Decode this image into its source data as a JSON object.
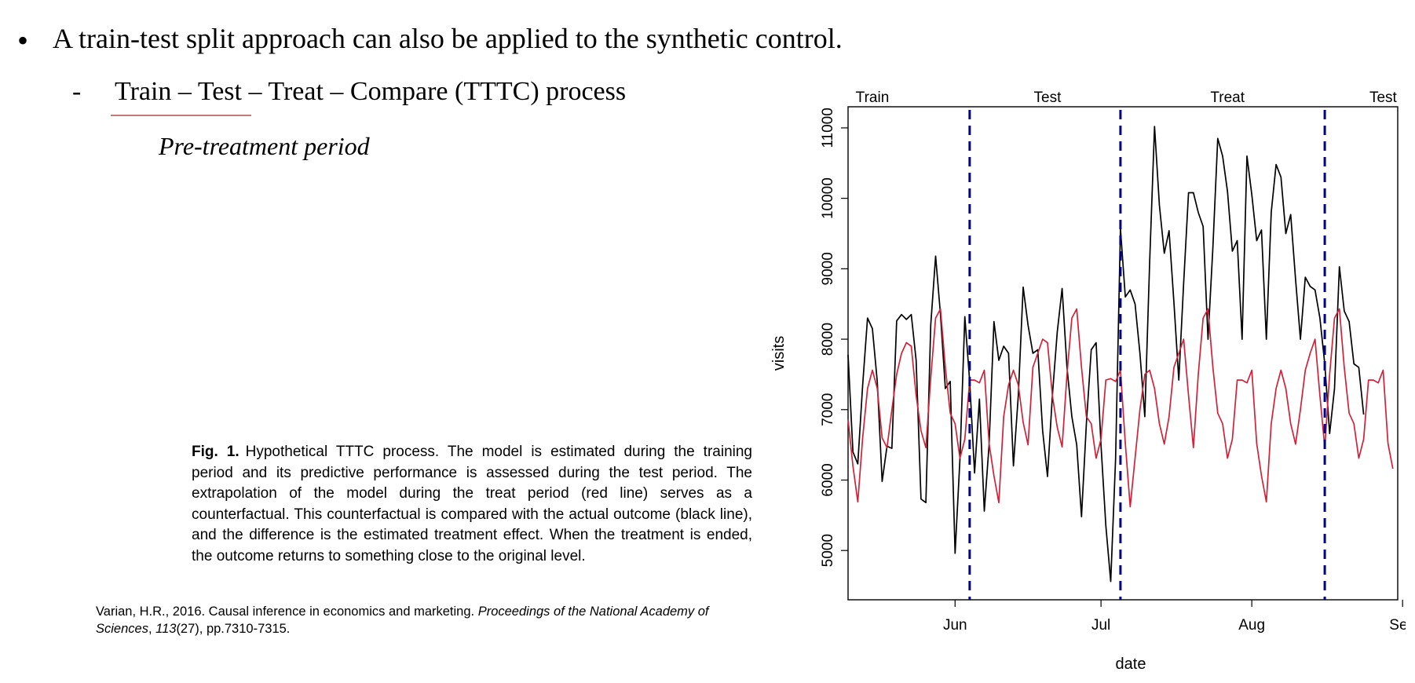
{
  "slide": {
    "bullet_marker": "•",
    "bullet_text": "A train-test split approach can also be applied to the synthetic control.",
    "sub_marker": "-",
    "sub_text": "Train – Test – Treat – Compare (TTTC) process",
    "pre_period_label": "Pre-treatment period"
  },
  "caption": {
    "label": "Fig. 1.",
    "text": "Hypothetical TTTC process. The model is estimated during the training period and its predictive performance is assessed during the test period. The extrapolation of the model during the treat period (red line) serves as a counterfactual. This counterfactual is compared with the actual outcome (black line), and the difference is the estimated treatment effect. When the treatment is ended, the outcome returns to something close to the original level."
  },
  "reference": {
    "authors": "Varian, H.R., 2016. Causal inference in economics and marketing. ",
    "journal": "Proceedings of the National Academy of Sciences",
    "sep": ", ",
    "volume": "113",
    "issue_pages": "(27), pp.7310-7315."
  },
  "chart_data": {
    "type": "line",
    "xlabel": "date",
    "ylabel": "visits",
    "xlim": [
      0,
      113
    ],
    "ylim": [
      4300,
      11300
    ],
    "y_ticks": [
      5000,
      6000,
      7000,
      8000,
      9000,
      10000,
      11000
    ],
    "x_ticks": [
      {
        "label": "Jun",
        "x": 22
      },
      {
        "label": "Jul",
        "x": 52
      },
      {
        "label": "Aug",
        "x": 83
      },
      {
        "label": "Sep",
        "x": 114
      }
    ],
    "phases": [
      {
        "label": "Train",
        "x": 5
      },
      {
        "label": "Test",
        "x": 41
      },
      {
        "label": "Treat",
        "x": 78
      },
      {
        "label": "Test",
        "x": 110
      }
    ],
    "dividers": [
      25,
      56,
      98
    ],
    "divider_color": "#00008b",
    "series": [
      {
        "color": "#000000",
        "values": [
          7780,
          6400,
          6230,
          7350,
          8300,
          8150,
          7400,
          5980,
          6480,
          6450,
          8260,
          8350,
          8280,
          8350,
          7700,
          5730,
          5680,
          8200,
          9180,
          8350,
          7300,
          7400,
          4960,
          6300,
          8320,
          7400,
          6100,
          7150,
          5560,
          6500,
          8250,
          7700,
          7900,
          7800,
          6200,
          7200,
          8740,
          8200,
          7800,
          7850,
          6700,
          6050,
          7200,
          8100,
          8720,
          7600,
          6900,
          6500,
          5480,
          6800,
          7850,
          7950,
          6500,
          5350,
          4560,
          6300,
          9570,
          8600,
          8700,
          8500,
          7800,
          6900,
          9100,
          11020,
          9900,
          9220,
          9540,
          8520,
          7420,
          8800,
          10080,
          10080,
          9800,
          9600,
          8000,
          9300,
          10850,
          10600,
          10100,
          9250,
          9400,
          8000,
          10600,
          10050,
          9400,
          9550,
          8000,
          9800,
          10480,
          10300,
          9500,
          9770,
          8850,
          8000,
          8880,
          8750,
          8700,
          8300,
          7650,
          6660,
          7300,
          9030,
          8400,
          8250,
          7650,
          7600,
          6930
        ]
      },
      {
        "color": "#d0223a",
        "values": [
          6860,
          6200,
          5690,
          6600,
          7300,
          7560,
          7300,
          6600,
          6460,
          7000,
          7500,
          7800,
          7950,
          7900,
          7200,
          6700,
          6460,
          7450,
          8300,
          8430,
          7600,
          6950,
          6800,
          6310,
          6580,
          7420,
          7420,
          7380,
          7560,
          6520,
          6060,
          5680,
          6900,
          7350,
          7560,
          7350,
          6820,
          6500,
          7600,
          7800,
          8000,
          7950,
          7200,
          6750,
          6470,
          7500,
          8300,
          8430,
          7600,
          6900,
          6800,
          6310,
          6580,
          7420,
          7440,
          7400,
          7560,
          6520,
          5620,
          6310,
          7000,
          7500,
          7560,
          7300,
          6800,
          6510,
          6900,
          7600,
          7800,
          8000,
          7200,
          6460,
          7500,
          8300,
          8430,
          7600,
          6950,
          6800,
          6310,
          6580,
          7420,
          7420,
          7380,
          7560,
          6520,
          6060,
          5690,
          6800,
          7300,
          7560,
          7300,
          6800,
          6510,
          7000,
          7560,
          7800,
          8000,
          7200,
          6460,
          7500,
          8300,
          8430,
          7600,
          6950,
          6800,
          6310,
          6580,
          7420,
          7420,
          7380,
          7560,
          6520,
          6160
        ]
      }
    ]
  }
}
